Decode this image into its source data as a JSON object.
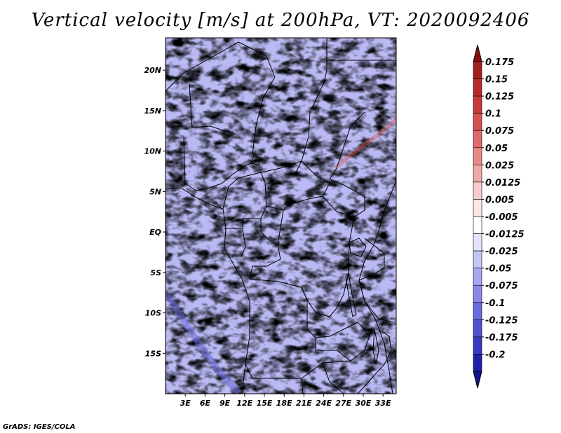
{
  "title": "Vertical velocity [m/s] at 200hPa, VT: 2020092406",
  "credit": "GrADS: IGES/COLA",
  "map": {
    "lon_range": [
      0,
      35
    ],
    "lat_range": [
      -20,
      24
    ],
    "lat_ticks": [
      {
        "value": 20,
        "label": "20N"
      },
      {
        "value": 15,
        "label": "15N"
      },
      {
        "value": 10,
        "label": "10N"
      },
      {
        "value": 5,
        "label": "5N"
      },
      {
        "value": 0,
        "label": "EQ"
      },
      {
        "value": -5,
        "label": "5S"
      },
      {
        "value": -10,
        "label": "10S"
      },
      {
        "value": -15,
        "label": "15S"
      }
    ],
    "lon_ticks": [
      {
        "value": 3,
        "label": "3E"
      },
      {
        "value": 6,
        "label": "6E"
      },
      {
        "value": 9,
        "label": "9E"
      },
      {
        "value": 12,
        "label": "12E"
      },
      {
        "value": 15,
        "label": "15E"
      },
      {
        "value": 18,
        "label": "18E"
      },
      {
        "value": 21,
        "label": "21E"
      },
      {
        "value": 24,
        "label": "24E"
      },
      {
        "value": 27,
        "label": "27E"
      },
      {
        "value": 30,
        "label": "30E"
      },
      {
        "value": 33,
        "label": "33E"
      }
    ]
  },
  "colorbar": {
    "levels": [
      {
        "label": "0.175",
        "color": "#a51e1e"
      },
      {
        "label": "0.15",
        "color": "#b82a2a"
      },
      {
        "label": "0.125",
        "color": "#c83a3a"
      },
      {
        "label": "0.1",
        "color": "#d65050"
      },
      {
        "label": "0.075",
        "color": "#e06a6a"
      },
      {
        "label": "0.05",
        "color": "#ea8888"
      },
      {
        "label": "0.025",
        "color": "#f2a8a8"
      },
      {
        "label": "0.0125",
        "color": "#f8caca"
      },
      {
        "label": "0.005",
        "color": "#fce6e6"
      },
      {
        "label": "-0.005",
        "color": "#ffffff"
      },
      {
        "label": "-0.0125",
        "color": "#e2e2fc"
      },
      {
        "label": "-0.025",
        "color": "#c4c4f8"
      },
      {
        "label": "-0.05",
        "color": "#a6a6f2"
      },
      {
        "label": "-0.075",
        "color": "#8888ea"
      },
      {
        "label": "-0.1",
        "color": "#6a6ae0"
      },
      {
        "label": "-0.125",
        "color": "#5050d2"
      },
      {
        "label": "-0.175",
        "color": "#3838c0"
      },
      {
        "label": "-0.2",
        "color": "#2020a8"
      }
    ],
    "top_arrow_color": "#8a0e0e",
    "bottom_arrow_color": "#14148e"
  }
}
